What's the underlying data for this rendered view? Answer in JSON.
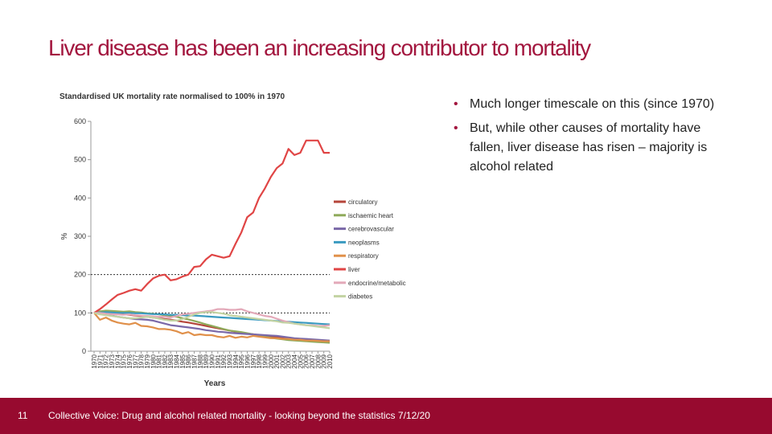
{
  "title": "Liver disease has been an increasing contributor to mortality",
  "bullets": [
    "Much longer timescale on this (since 1970)",
    "But, while other causes of mortality have fallen, liver disease has risen – majority is alcohol related"
  ],
  "page_number": "11",
  "footer": "Collective Voice: Drug and alcohol related mortality - looking beyond the statistics 7/12/20",
  "chart_data": {
    "type": "line",
    "title": "Standardised UK mortality rate normalised to 100% in 1970",
    "x_label": "Years",
    "y_label": "%",
    "categories": [
      "1970",
      "1971",
      "1972",
      "1973",
      "1974",
      "1975",
      "1976",
      "1977",
      "1978",
      "1979",
      "1980",
      "1981",
      "1982",
      "1983",
      "1984",
      "1985",
      "1986",
      "1987",
      "1988",
      "1989",
      "1990",
      "1991",
      "1992",
      "1993",
      "1994",
      "1995",
      "1996",
      "1997",
      "1998",
      "1999",
      "2000",
      "2001",
      "2002",
      "2003",
      "2004",
      "2005",
      "2006",
      "2007",
      "2008",
      "2009",
      "2010"
    ],
    "ylim": [
      0,
      600
    ],
    "yticks": [
      0,
      100,
      200,
      300,
      400,
      500,
      600
    ],
    "ref_lines": [
      100,
      200
    ],
    "legend": "right",
    "series": [
      {
        "name": "circulatory",
        "color": "#b5453a",
        "values": [
          100,
          102,
          101,
          100,
          98,
          96,
          95,
          93,
          92,
          90,
          88,
          86,
          84,
          82,
          80,
          77,
          75,
          72,
          69,
          66,
          63,
          60,
          57,
          54,
          51,
          48,
          46,
          44,
          42,
          40,
          38,
          36,
          34,
          32,
          31,
          30,
          29,
          28,
          27,
          26,
          25
        ]
      },
      {
        "name": "ischaemic heart",
        "color": "#8faa5a",
        "values": [
          100,
          104,
          106,
          105,
          104,
          103,
          104,
          102,
          101,
          99,
          98,
          96,
          94,
          92,
          90,
          86,
          83,
          79,
          75,
          70,
          66,
          62,
          58,
          54,
          52,
          50,
          47,
          44,
          41,
          38,
          35,
          33,
          31,
          29,
          28,
          27,
          26,
          25,
          24,
          23,
          22
        ]
      },
      {
        "name": "cerebrovascular",
        "color": "#7a68a8",
        "values": [
          100,
          98,
          96,
          93,
          90,
          88,
          86,
          84,
          83,
          82,
          80,
          76,
          72,
          68,
          66,
          64,
          62,
          60,
          58,
          55,
          53,
          51,
          50,
          48,
          47,
          46,
          45,
          44,
          43,
          42,
          41,
          40,
          38,
          36,
          34,
          33,
          32,
          31,
          30,
          29,
          28
        ]
      },
      {
        "name": "neoplasms",
        "color": "#3a9ac0",
        "values": [
          100,
          101,
          102,
          101,
          100,
          100,
          100,
          99,
          99,
          98,
          97,
          97,
          96,
          95,
          95,
          94,
          93,
          93,
          92,
          91,
          90,
          89,
          88,
          87,
          86,
          85,
          84,
          83,
          82,
          81,
          80,
          79,
          78,
          77,
          76,
          75,
          74,
          73,
          72,
          71,
          70
        ]
      },
      {
        "name": "respiratory",
        "color": "#e0904a",
        "values": [
          100,
          82,
          88,
          80,
          75,
          72,
          70,
          74,
          66,
          65,
          62,
          58,
          58,
          56,
          52,
          46,
          50,
          42,
          44,
          42,
          42,
          38,
          36,
          40,
          35,
          38,
          36,
          40,
          38,
          36,
          34,
          34,
          32,
          32,
          30,
          30,
          28,
          28,
          27,
          26,
          26
        ]
      },
      {
        "name": "liver",
        "color": "#e04545",
        "values": [
          100,
          110,
          122,
          135,
          147,
          152,
          158,
          162,
          158,
          175,
          190,
          197,
          200,
          185,
          188,
          195,
          200,
          220,
          222,
          240,
          252,
          248,
          244,
          248,
          280,
          310,
          350,
          362,
          400,
          425,
          455,
          478,
          490,
          528,
          512,
          518,
          550,
          550,
          550,
          518,
          518
        ]
      },
      {
        "name": "endocrine/metabolic",
        "color": "#e3a9b9",
        "values": [
          100,
          100,
          98,
          97,
          96,
          95,
          96,
          94,
          93,
          92,
          91,
          90,
          90,
          88,
          92,
          96,
          98,
          100,
          102,
          104,
          106,
          110,
          110,
          108,
          108,
          110,
          104,
          100,
          96,
          92,
          90,
          85,
          80,
          76,
          72,
          70,
          68,
          68,
          66,
          66,
          68
        ]
      },
      {
        "name": "diabetes",
        "color": "#c3d3a3",
        "values": [
          100,
          96,
          94,
          92,
          90,
          88,
          86,
          86,
          88,
          90,
          88,
          85,
          82,
          80,
          80,
          84,
          90,
          96,
          100,
          102,
          102,
          100,
          98,
          94,
          92,
          90,
          88,
          86,
          84,
          82,
          80,
          78,
          75,
          74,
          72,
          70,
          68,
          66,
          64,
          62,
          60
        ]
      }
    ]
  }
}
